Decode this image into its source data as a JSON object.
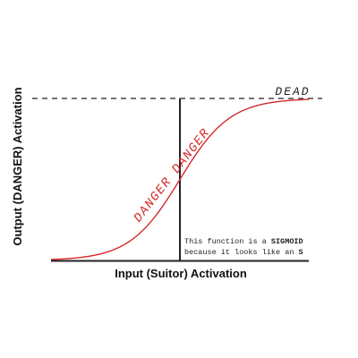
{
  "labels": {
    "top": "DEAD",
    "curve": "DANGER DANGER",
    "y_axis": "Output (DANGER) Activation",
    "x_axis": "Input (Suitor) Activation"
  },
  "note": {
    "line1": [
      "This function is a ",
      "SIGMOID"
    ],
    "line2": [
      "because it looks like an ",
      "S"
    ]
  }
}
